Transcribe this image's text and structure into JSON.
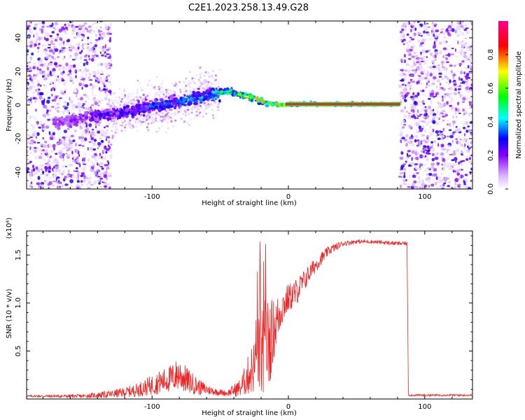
{
  "title": "C2E1.2023.258.13.49.G28",
  "chart_data": [
    {
      "type": "heatmap",
      "xlabel": "Height of straight line (km)",
      "ylabel": "Frequency (Hz)",
      "xlim": [
        -192,
        135
      ],
      "ylim": [
        -50,
        50
      ],
      "x_ticks": [
        -100,
        0,
        100
      ],
      "y_ticks": [
        -40,
        -20,
        0,
        20,
        40
      ],
      "colorbar": {
        "label": "Normalized spectral amplitude",
        "range": [
          0,
          1
        ],
        "ticks": [
          "0.0",
          "0.2",
          "0.4",
          "0.6",
          "0.8"
        ],
        "colors": [
          "#e8e0ff",
          "#8800ff",
          "#0000ff",
          "#00ffff",
          "#00ff00",
          "#ffff00",
          "#ff0000",
          "#ff0088"
        ]
      },
      "ridge": {
        "x": [
          -165,
          -140,
          -120,
          -100,
          -80,
          -60,
          -45,
          -35,
          -25,
          -15,
          -5,
          5,
          20,
          40,
          60,
          82
        ],
        "freq": [
          -10,
          -6,
          -4,
          -1,
          2,
          6,
          8,
          6,
          4,
          1,
          0,
          0.5,
          0.5,
          0.5,
          0.5,
          0.5
        ],
        "amplitude": [
          0.2,
          0.3,
          0.35,
          0.4,
          0.45,
          0.5,
          0.6,
          0.7,
          0.75,
          0.85,
          0.9,
          0.95,
          0.95,
          0.95,
          0.95,
          0.95
        ]
      },
      "noise_regions": [
        [
          -192,
          -130
        ],
        [
          82,
          135
        ]
      ]
    },
    {
      "type": "line",
      "xlabel": "Height of straight line (km)",
      "ylabel": "SNR (10 * v/v)",
      "y_multiplier": "(x10⁴)",
      "xlim": [
        -192,
        135
      ],
      "ylim": [
        0,
        1.75
      ],
      "x_ticks": [
        -100,
        0,
        100
      ],
      "y_ticks": [
        0.5,
        1.0,
        1.5
      ],
      "y_tick_labels": [
        "0.5",
        "1.0",
        "1.5"
      ],
      "color": "#ee2222",
      "envelope": {
        "x": [
          -192,
          -150,
          -130,
          -115,
          -105,
          -95,
          -85,
          -80,
          -75,
          -65,
          -55,
          -45,
          -35,
          -25,
          -20,
          -15,
          -10,
          -5,
          0,
          5,
          10,
          20,
          30,
          40,
          50,
          60,
          70,
          80,
          87,
          88,
          135
        ],
        "base": [
          0.03,
          0.03,
          0.05,
          0.08,
          0.12,
          0.17,
          0.22,
          0.26,
          0.2,
          0.12,
          0.08,
          0.06,
          0.12,
          0.35,
          0.5,
          0.55,
          0.75,
          0.95,
          1.05,
          1.1,
          1.2,
          1.4,
          1.55,
          1.62,
          1.64,
          1.64,
          1.63,
          1.62,
          1.62,
          0.04,
          0.04
        ],
        "amp": [
          0.01,
          0.02,
          0.04,
          0.06,
          0.09,
          0.12,
          0.15,
          0.18,
          0.14,
          0.08,
          0.04,
          0.03,
          0.1,
          0.3,
          0.55,
          0.5,
          0.3,
          0.2,
          0.15,
          0.15,
          0.12,
          0.08,
          0.05,
          0.03,
          0.02,
          0.02,
          0.02,
          0.02,
          0.02,
          0.01,
          0.01
        ]
      }
    }
  ]
}
